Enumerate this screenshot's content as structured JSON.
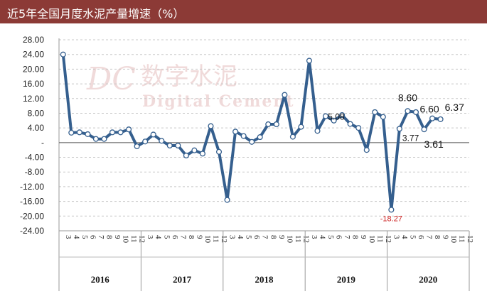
{
  "header": {
    "title": "近5年全国月度水泥产量增速（%）"
  },
  "watermark": {
    "cn": "数字水泥",
    "en": "Digital Cement"
  },
  "chart_data": {
    "type": "line",
    "title": "近5年全国月度水泥产量增速（%）",
    "ylim": [
      -24,
      28
    ],
    "yticks": [
      "28.00",
      "24.00",
      "20.00",
      "16.00",
      "12.00",
      "8.00",
      "4.00",
      "-",
      "-4.00",
      "-8.00",
      "-12.00",
      "-16.00",
      "-20.00",
      "-24.00"
    ],
    "grid": "horizontal dashed",
    "line_color": "#355f8e",
    "label_color_negative": "#cc2222",
    "x_months": [
      "3",
      "4",
      "5",
      "6",
      "7",
      "8",
      "9",
      "10",
      "11",
      "12",
      "3",
      "4",
      "5",
      "6",
      "7",
      "8",
      "9",
      "10",
      "11",
      "12",
      "3",
      "4",
      "5",
      "6",
      "7",
      "8",
      "9",
      "10",
      "11",
      "12",
      "3",
      "4",
      "5",
      "6",
      "7",
      "8",
      "9",
      "10",
      "11",
      "12",
      "3",
      "4",
      "5",
      "6",
      "7",
      "8",
      "9",
      "10",
      "11",
      "12"
    ],
    "years": [
      {
        "label": "2016",
        "months": 10
      },
      {
        "label": "2017",
        "months": 10
      },
      {
        "label": "2018",
        "months": 10
      },
      {
        "label": "2019",
        "months": 10
      },
      {
        "label": "2020",
        "months": 10
      }
    ],
    "series": [
      {
        "values": [
          24.0,
          2.7,
          2.8,
          2.3,
          1.0,
          1.0,
          2.8,
          2.8,
          3.6,
          -1.0,
          0.3,
          2.2,
          0.5,
          -0.8,
          -0.8,
          -3.5,
          -2.1,
          -3.0,
          4.5,
          -2.5,
          -15.6,
          3.0,
          1.8,
          0.2,
          1.5,
          5.0,
          5.0,
          13.0,
          1.6,
          4.3,
          22.3,
          3.2,
          7.2,
          6.0,
          7.5,
          5.08,
          4.0,
          -2.0,
          8.3,
          7.0,
          -18.27,
          3.77,
          8.6,
          8.3,
          3.61,
          6.6,
          6.37,
          null,
          null,
          null
        ]
      }
    ],
    "data_labels": [
      {
        "index": 35,
        "text": "5.08"
      },
      {
        "index": 40,
        "text": "-18.27"
      },
      {
        "index": 41,
        "text": "3.77"
      },
      {
        "index": 42,
        "text": "8.60"
      },
      {
        "index": 44,
        "text": "3.61"
      },
      {
        "index": 45,
        "text": "6.60"
      },
      {
        "index": 46,
        "text": "6.37"
      }
    ]
  }
}
